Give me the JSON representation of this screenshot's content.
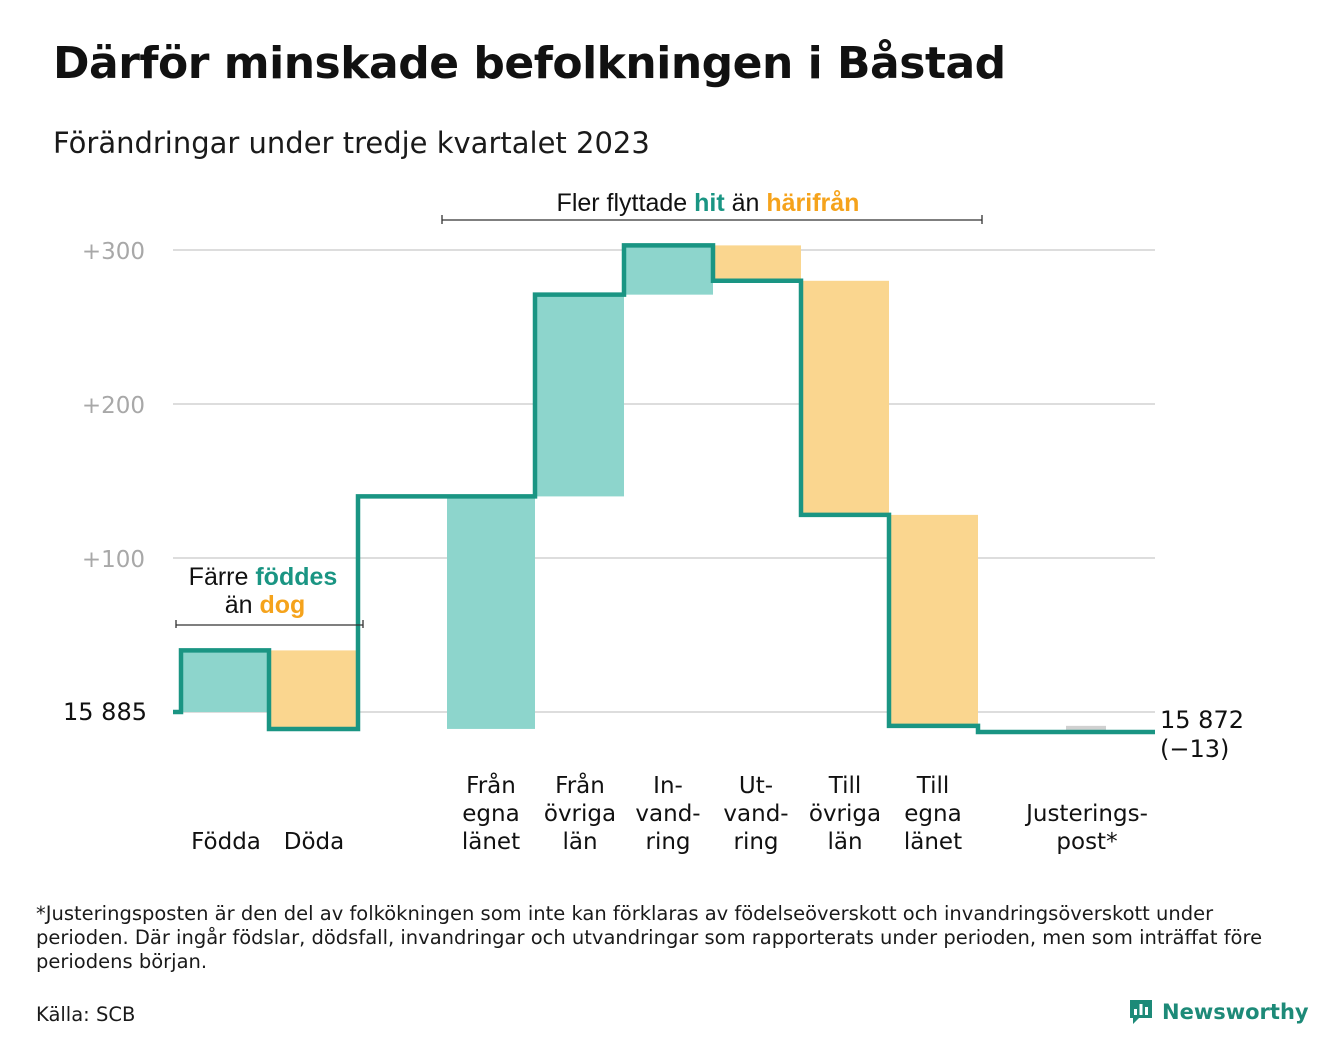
{
  "title": "Därför minskade befolkningen i Båstad",
  "subtitle": "Förändringar under tredje kvartalet 2023",
  "colors": {
    "inflow": "#8dd5cc",
    "outflow": "#fad68f",
    "adjustment": "#d0d0d0",
    "line": "#1a9583",
    "teal_text": "#1a9583",
    "orange_text": "#f5a31c",
    "grid": "#dddddd",
    "axis_text": "#a8a8a8"
  },
  "annotations": {
    "births": {
      "line1_pre": "Färre ",
      "line1_em": "föddes",
      "line2_pre": "än ",
      "line2_em": "dog"
    },
    "migration": {
      "pre": "Fler flyttade ",
      "em1": "hit",
      "mid": " än ",
      "em2": "härifrån"
    }
  },
  "chart_data": {
    "type": "waterfall",
    "start_value": 15885,
    "start_label": "15 885",
    "end_label": "15 872",
    "end_change_label": "(−13)",
    "y_tick_labels": [
      "+100",
      "+200",
      "+300"
    ],
    "y_ticks": [
      100,
      200,
      300
    ],
    "ylim": [
      -20,
      305
    ],
    "steps": [
      {
        "label_lines": [
          "Födda"
        ],
        "from": 0,
        "to": 40,
        "kind": "inflow"
      },
      {
        "label_lines": [
          "Döda"
        ],
        "from": 40,
        "to": -11,
        "kind": "outflow"
      },
      {
        "label_lines": [
          "Från",
          "egna",
          "länet"
        ],
        "from": -11,
        "to": 140,
        "kind": "inflow"
      },
      {
        "label_lines": [
          "Från",
          "övriga",
          "län"
        ],
        "from": 140,
        "to": 271,
        "kind": "inflow"
      },
      {
        "label_lines": [
          "In-",
          "vand-",
          "ring"
        ],
        "from": 271,
        "to": 303,
        "kind": "inflow"
      },
      {
        "label_lines": [
          "Ut-",
          "vand-",
          "ring"
        ],
        "from": 303,
        "to": 280,
        "kind": "outflow"
      },
      {
        "label_lines": [
          "Till",
          "övriga",
          "län"
        ],
        "from": 280,
        "to": 128,
        "kind": "outflow"
      },
      {
        "label_lines": [
          "Till",
          "egna",
          "länet"
        ],
        "from": 128,
        "to": -9,
        "kind": "outflow"
      },
      {
        "label_lines": [
          "Justerings-",
          "post*"
        ],
        "from": -9,
        "to": -13,
        "kind": "adjustment"
      }
    ]
  },
  "footnote": "*Justeringsposten är den del av folkökningen som inte kan förklaras av födelseöverskott och invandringsöverskott under perioden. Där ingår födslar, dödsfall, invandringar och utvandringar som rapporterats under perioden, men som inträffat före periodens början.",
  "source": "Källa: SCB",
  "brand": {
    "name": "Newsworthy",
    "icon": "bar-chart-logo-icon"
  }
}
